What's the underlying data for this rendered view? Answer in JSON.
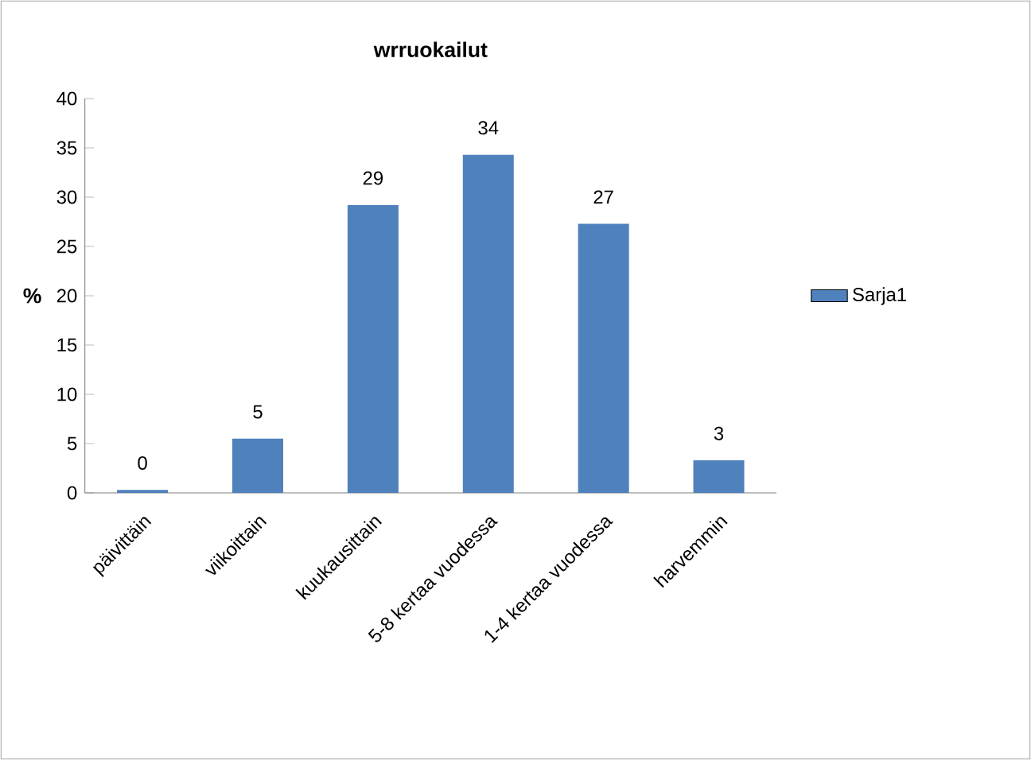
{
  "chart_data": {
    "type": "bar",
    "title": "wrruokailut",
    "ylabel": "%",
    "categories": [
      "päivittäin",
      "viikoittain",
      "kuukausittain",
      "5-8 kertaa vuodessa",
      "1-4 kertaa vuodessa",
      "harvemmin"
    ],
    "series": [
      {
        "name": "Sarja1",
        "color": "#4f81bd",
        "values": [
          0.3,
          5.5,
          29.2,
          34.3,
          27.3,
          3.3
        ],
        "value_labels": [
          "0",
          "5",
          "29",
          "34",
          "27",
          "3"
        ]
      }
    ],
    "ylim": [
      0,
      40
    ],
    "yticks": [
      0,
      5,
      10,
      15,
      20,
      25,
      30,
      35,
      40
    ],
    "grid": false,
    "legend": "right"
  }
}
